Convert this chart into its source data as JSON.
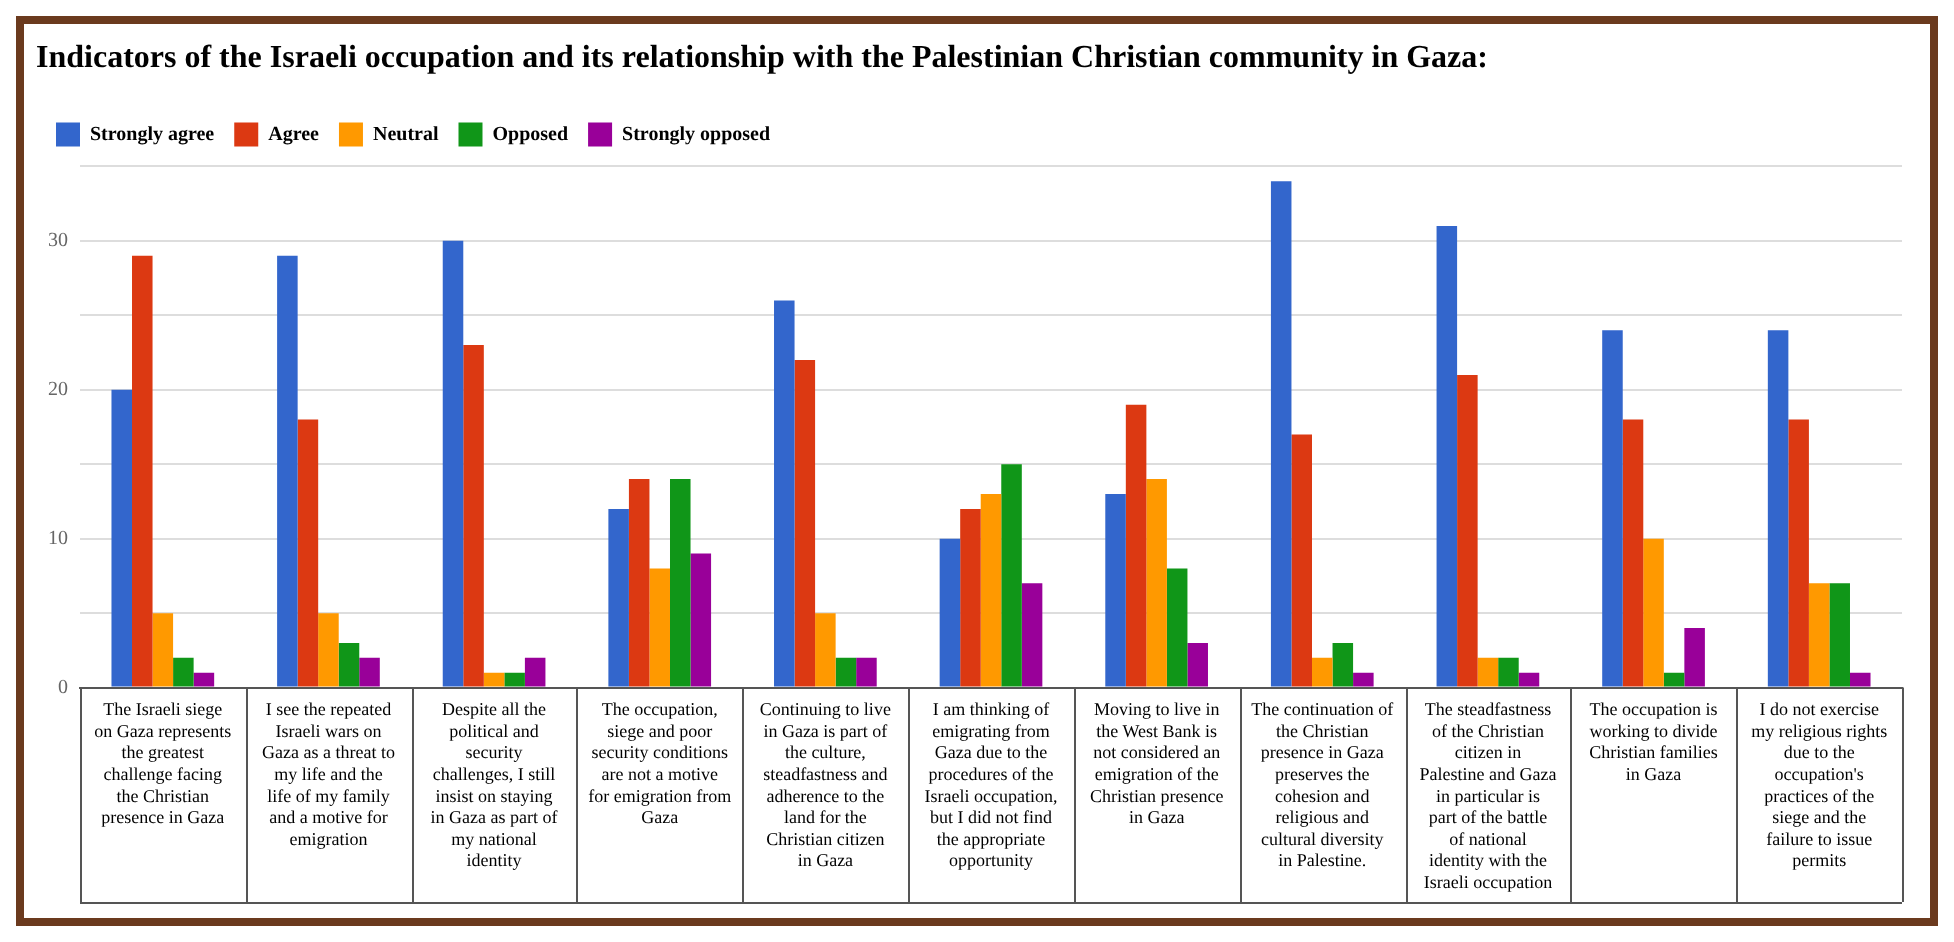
{
  "chart_data": {
    "type": "bar",
    "title": "Indicators of the Israeli occupation and its relationship with the Palestinian Christian community in Gaza:",
    "categories": [
      "The Israeli siege on Gaza represents the greatest challenge facing the Christian presence in Gaza",
      "I see the repeated Israeli wars on Gaza as a threat to my life and the life of my family and a motive for emigration",
      "Despite all the political and security challenges, I still insist on staying in Gaza as part of my national identity",
      "The occupation, siege and poor security conditions are not a motive for emigration from Gaza",
      "Continuing to live in Gaza is part of the culture, steadfastness and adherence to the land for the Christian citizen in Gaza",
      "I am thinking of emigrating from Gaza due to the procedures of the Israeli occupation, but I did not find the appropriate opportunity",
      "Moving to live in the West Bank is not considered an emigration of the Christian presence in Gaza",
      "The continuation of the Christian presence in Gaza preserves the cohesion and religious and cultural diversity in Palestine.",
      "The steadfastness of the Christian citizen in Palestine and Gaza in particular is part of the battle of national identity with the Israeli occupation",
      "The occupation is working to divide Christian families in Gaza",
      "I do not exercise my religious rights due to the occupation's practices of the siege and the failure to issue permits"
    ],
    "series": [
      {
        "name": "Strongly agree",
        "color": "#3366cc",
        "values": [
          20,
          29,
          30,
          12,
          26,
          10,
          13,
          34,
          31,
          24,
          24
        ]
      },
      {
        "name": "Agree",
        "color": "#dc3912",
        "values": [
          29,
          18,
          23,
          14,
          22,
          12,
          19,
          17,
          21,
          18,
          18
        ]
      },
      {
        "name": "Neutral",
        "color": "#ff9900",
        "values": [
          5,
          5,
          1,
          8,
          5,
          13,
          14,
          2,
          2,
          10,
          7
        ]
      },
      {
        "name": "Opposed",
        "color": "#109618",
        "values": [
          2,
          3,
          1,
          14,
          2,
          15,
          8,
          3,
          2,
          1,
          7
        ]
      },
      {
        "name": "Strongly opposed",
        "color": "#990099",
        "values": [
          1,
          2,
          2,
          9,
          2,
          7,
          3,
          1,
          1,
          4,
          1
        ]
      }
    ],
    "ylim": [
      0,
      35
    ],
    "yticks": [
      0,
      {
        "value": 5,
        "label": null
      },
      10,
      {
        "value": 15,
        "label": null
      },
      20,
      {
        "value": 25,
        "label": null
      },
      30,
      {
        "value": 35,
        "label": null
      }
    ],
    "grid": "y",
    "legend": "top left"
  }
}
